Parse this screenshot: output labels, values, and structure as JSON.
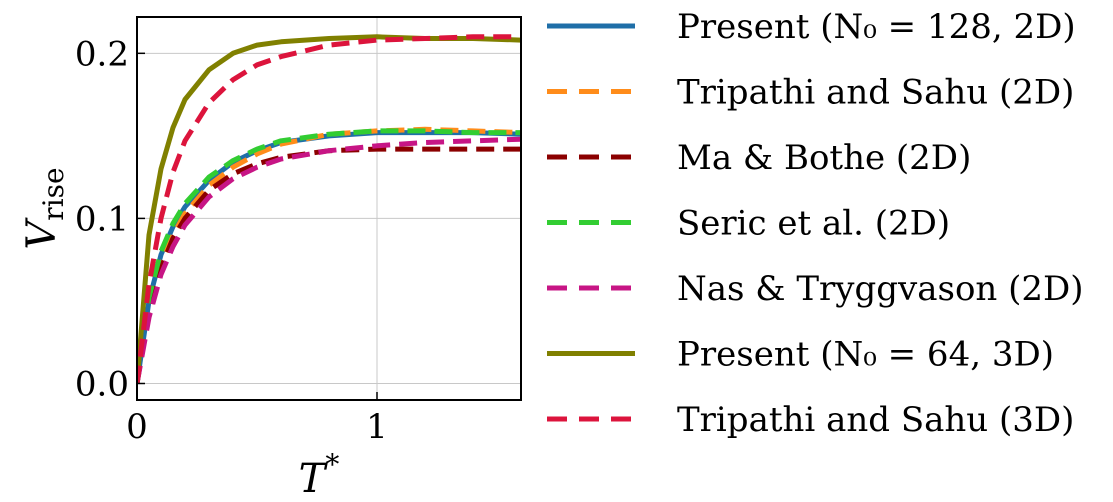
{
  "chart_data": {
    "type": "line",
    "xlabel": "T*",
    "ylabel": "V_rise",
    "xlim": [
      0,
      1.6
    ],
    "ylim": [
      -0.01,
      0.222
    ],
    "xticks": [
      0,
      1
    ],
    "xtick_labels": [
      "0",
      "1"
    ],
    "yticks": [
      0.0,
      0.1,
      0.2
    ],
    "ytick_labels": [
      "0.0",
      "0.1",
      "0.2"
    ],
    "grid": true,
    "legend_position": "right, outside plot",
    "series": [
      {
        "name": "Present (N₀ = 128, 2D)",
        "color": "#1f6fa8",
        "style": "solid",
        "x": [
          0,
          0.05,
          0.1,
          0.15,
          0.2,
          0.3,
          0.4,
          0.5,
          0.6,
          0.8,
          1.0,
          1.2,
          1.4,
          1.6
        ],
        "y": [
          0,
          0.05,
          0.078,
          0.095,
          0.107,
          0.123,
          0.134,
          0.141,
          0.146,
          0.15,
          0.152,
          0.152,
          0.152,
          0.151
        ]
      },
      {
        "name": "Tripathi and Sahu (2D)",
        "color": "#ff8c1a",
        "style": "dashed",
        "x": [
          0,
          0.05,
          0.1,
          0.15,
          0.2,
          0.3,
          0.4,
          0.5,
          0.6,
          0.8,
          1.0,
          1.2,
          1.4,
          1.6
        ],
        "y": [
          0,
          0.045,
          0.072,
          0.09,
          0.103,
          0.12,
          0.131,
          0.139,
          0.145,
          0.151,
          0.153,
          0.154,
          0.153,
          0.152
        ]
      },
      {
        "name": "Ma & Bothe (2D)",
        "color": "#8b0000",
        "style": "dashed",
        "x": [
          0,
          0.05,
          0.1,
          0.15,
          0.2,
          0.3,
          0.4,
          0.5,
          0.6,
          0.8,
          1.0,
          1.2,
          1.4,
          1.6
        ],
        "y": [
          0,
          0.043,
          0.07,
          0.088,
          0.1,
          0.117,
          0.127,
          0.133,
          0.137,
          0.141,
          0.142,
          0.142,
          0.142,
          0.142
        ]
      },
      {
        "name": "Seric et al. (2D)",
        "color": "#32cd32",
        "style": "dashed",
        "x": [
          0,
          0.05,
          0.1,
          0.15,
          0.2,
          0.3,
          0.4,
          0.5,
          0.6,
          0.8,
          1.0,
          1.2,
          1.4,
          1.6
        ],
        "y": [
          0,
          0.052,
          0.08,
          0.097,
          0.109,
          0.125,
          0.135,
          0.142,
          0.147,
          0.151,
          0.153,
          0.153,
          0.152,
          0.152
        ]
      },
      {
        "name": "Nas & Tryggvason (2D)",
        "color": "#c71585",
        "style": "dashed",
        "x": [
          0,
          0.05,
          0.1,
          0.15,
          0.2,
          0.3,
          0.4,
          0.5,
          0.6,
          0.8,
          1.0,
          1.2,
          1.4,
          1.6
        ],
        "y": [
          0,
          0.04,
          0.066,
          0.083,
          0.096,
          0.113,
          0.124,
          0.131,
          0.136,
          0.141,
          0.144,
          0.146,
          0.147,
          0.148
        ]
      },
      {
        "name": "Present (N₀ = 64, 3D)",
        "color": "#808000",
        "style": "solid",
        "x": [
          0,
          0.05,
          0.1,
          0.15,
          0.2,
          0.3,
          0.4,
          0.5,
          0.6,
          0.7,
          0.8,
          1.0,
          1.2,
          1.4,
          1.6
        ],
        "y": [
          0,
          0.09,
          0.13,
          0.155,
          0.172,
          0.19,
          0.2,
          0.205,
          0.207,
          0.208,
          0.209,
          0.21,
          0.209,
          0.209,
          0.208
        ]
      },
      {
        "name": "Tripathi and Sahu (3D)",
        "color": "#dc143c",
        "style": "dashed",
        "x": [
          0,
          0.05,
          0.1,
          0.15,
          0.2,
          0.3,
          0.4,
          0.5,
          0.6,
          0.8,
          1.0,
          1.2,
          1.4,
          1.6
        ],
        "y": [
          0,
          0.06,
          0.1,
          0.128,
          0.147,
          0.17,
          0.184,
          0.193,
          0.198,
          0.205,
          0.208,
          0.209,
          0.21,
          0.21
        ]
      }
    ]
  }
}
